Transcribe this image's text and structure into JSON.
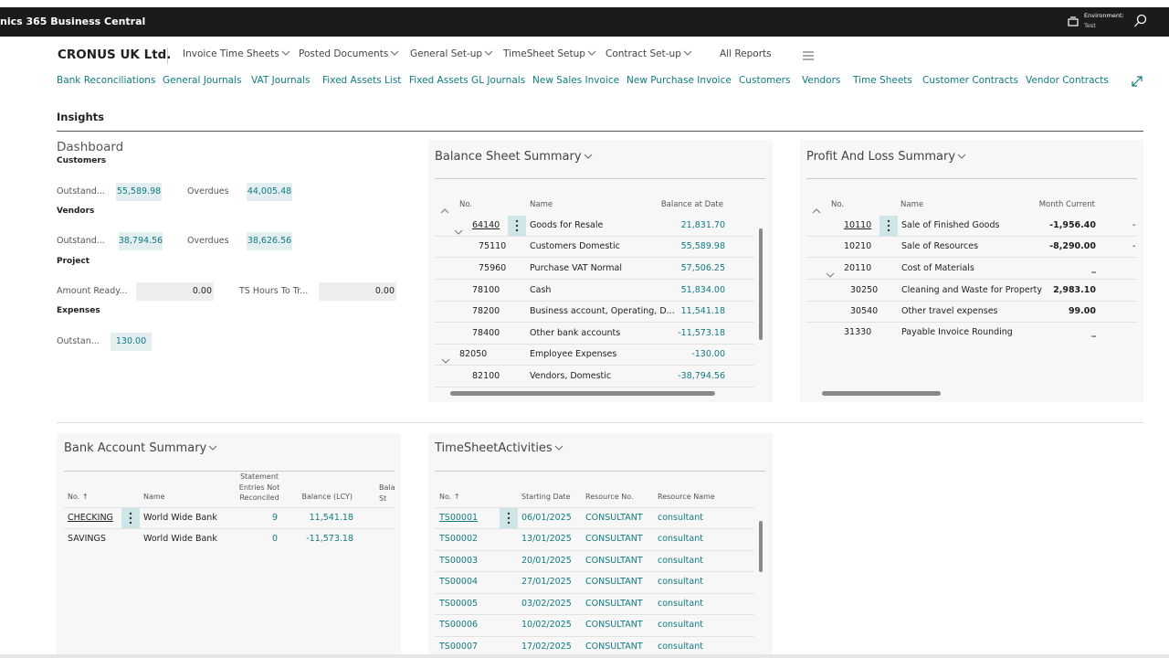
{
  "header": {
    "app_title": "nics 365 Business Central",
    "environment_label": "Environment:",
    "environment_value": "Test"
  },
  "company": "CRONUS UK Ltd.",
  "nav": [
    "Invoice Time Sheets",
    "Posted Documents",
    "General Set-up",
    "TimeSheet Setup",
    "Contract Set-up",
    "All Reports"
  ],
  "links": [
    "Bank Reconciliations",
    "General Journals",
    "VAT Journals",
    "Fixed Assets List",
    "Fixed Assets GL Journals",
    "New Sales Invoice",
    "New Purchase Invoice",
    "Customers",
    "Vendors",
    "Time Sheets",
    "Customer Contracts",
    "Vendor Contracts"
  ],
  "insights_title": "Insights",
  "dashboard": {
    "title": "Dashboard",
    "groups": [
      {
        "title": "Customers",
        "tiles": [
          {
            "label": "Outstand...",
            "value": "55,589.98"
          },
          {
            "label": "Overdues",
            "value": "44,005.48"
          }
        ]
      },
      {
        "title": "Vendors",
        "tiles": [
          {
            "label": "Outstand...",
            "value": "38,794.56"
          },
          {
            "label": "Overdues",
            "value": "38,626.56"
          }
        ]
      },
      {
        "title": "Project",
        "tiles": [
          {
            "label": "Amount Ready...",
            "value": "0.00"
          },
          {
            "label": "TS Hours To Tr...",
            "value": "0.00"
          }
        ]
      },
      {
        "title": "Expenses",
        "tiles": [
          {
            "label": "Outstan...",
            "value": "130.00"
          }
        ]
      }
    ]
  },
  "balance_sheet": {
    "title": "Balance Sheet Summary",
    "columns": [
      "No.",
      "Name",
      "Balance at Date"
    ],
    "rows": [
      [
        "64140",
        "Goods for Resale",
        "21,831.70"
      ],
      [
        "75110",
        "Customers Domestic",
        "55,589.98"
      ],
      [
        "75960",
        "Purchase VAT Normal",
        "57,506.25"
      ],
      [
        "78100",
        "Cash",
        "51,834.00"
      ],
      [
        "78200",
        "Business account, Operating, D...",
        "11,541.18"
      ],
      [
        "78400",
        "Other bank accounts",
        "-11,573.18"
      ],
      [
        "82050",
        "Employee Expenses",
        "-130.00"
      ],
      [
        "82100",
        "Vendors, Domestic",
        "-38,794.56"
      ]
    ]
  },
  "profit_loss": {
    "title": "Profit And Loss Summary",
    "columns": [
      "No.",
      "Name",
      "Month Current"
    ],
    "rows": [
      {
        "no": "10110",
        "name": "Sale of Finished Goods",
        "value": "-1,956.40",
        "next": "-"
      },
      {
        "no": "10210",
        "name": "Sale of Resources",
        "value": "-8,290.00",
        "next": "-"
      },
      {
        "no": "20110",
        "name": "Cost of Materials",
        "value": "_"
      },
      {
        "no": "30250",
        "name": "Cleaning and Waste for Property",
        "value": "2,983.10"
      },
      {
        "no": "30540",
        "name": "Other travel expenses",
        "value": "99.00"
      },
      {
        "no": "31330",
        "name": "Payable Invoice Rounding",
        "value": "_"
      }
    ]
  },
  "bank_account": {
    "title": "Bank Account Summary",
    "columns": [
      "No. ↑",
      "Name",
      "Statement Entries Not Reconciled",
      "Balance (LCY)",
      "Bala St"
    ],
    "rows": [
      [
        "CHECKING",
        "World Wide Bank",
        "9",
        "11,541.18"
      ],
      [
        "SAVINGS",
        "World Wide Bank",
        "0",
        "-11,573.18"
      ]
    ]
  },
  "timesheet": {
    "title": "TimeSheetActivities",
    "columns": [
      "No. ↑",
      "Starting Date",
      "Resource No.",
      "Resource Name"
    ],
    "rows": [
      [
        "TS00001",
        "06/01/2025",
        "CONSULTANT",
        "consultant"
      ],
      [
        "TS00002",
        "13/01/2025",
        "CONSULTANT",
        "consultant"
      ],
      [
        "TS00003",
        "20/01/2025",
        "CONSULTANT",
        "consultant"
      ],
      [
        "TS00004",
        "27/01/2025",
        "CONSULTANT",
        "consultant"
      ],
      [
        "TS00005",
        "03/02/2025",
        "CONSULTANT",
        "consultant"
      ],
      [
        "TS00006",
        "10/02/2025",
        "CONSULTANT",
        "consultant"
      ],
      [
        "TS00007",
        "17/02/2025",
        "CONSULTANT",
        "consultant"
      ]
    ]
  }
}
